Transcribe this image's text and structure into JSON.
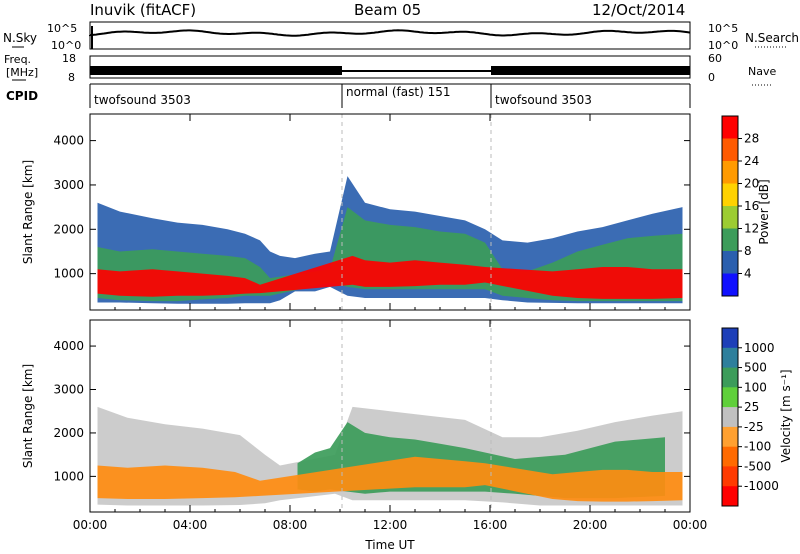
{
  "header": {
    "station": "Inuvik (fitACF)",
    "beam": "Beam 05",
    "date": "12/Oct/2014"
  },
  "strip": {
    "nsky_label": "N.Sky",
    "nsky_ticks": [
      "10^5",
      "10^0"
    ],
    "nsearch_label": "N.Search",
    "nsearch_ticks": [
      "10^5",
      "10^0"
    ],
    "freq_label_1": "Freq.",
    "freq_label_2": "[MHz]",
    "freq_ticks": [
      "18",
      "8"
    ],
    "nave_label": "Nave",
    "nave_ticks": [
      "60",
      "0"
    ],
    "cpid_label": "CPID",
    "modes": [
      {
        "name": "twofsound 3503",
        "start": 0,
        "end": 10
      },
      {
        "name": "normal (fast) 151",
        "start": 10,
        "end": 16
      },
      {
        "name": "twofsound 3503",
        "start": 16,
        "end": 24
      }
    ]
  },
  "chart_data": [
    {
      "type": "heatmap",
      "panel": "power",
      "xlabel": "",
      "ylabel": "Slant Range [km]",
      "xlim": [
        0,
        24
      ],
      "ylim": [
        180,
        4600
      ],
      "yticks": [
        "1000",
        "2000",
        "3000",
        "4000"
      ],
      "yvalues": [
        1000,
        2000,
        3000,
        4000
      ],
      "colorbar_label": "Power [dB]",
      "colorbar_ticks": [
        "28",
        "24",
        "20",
        "16",
        "12",
        "8",
        "4"
      ],
      "colorbar_colors": [
        "#ff0000",
        "#ff5a00",
        "#ff9a00",
        "#ffd200",
        "#9ccc32",
        "#3c9c5a",
        "#2a5fae",
        "#1010ff"
      ],
      "layers": [
        {
          "level": "low",
          "color": "#2a5fae",
          "x": [
            0.3,
            1.2,
            2.5,
            3.5,
            4.5,
            5.5,
            6.2,
            6.8,
            7.2,
            7.6,
            8.2,
            9.0,
            9.6,
            10.3,
            11.0,
            12.0,
            13.0,
            14.0,
            15.0,
            15.8,
            16.5,
            17.5,
            18.5,
            19.5,
            20.5,
            21.5,
            22.5,
            23.7
          ],
          "top": [
            2600,
            2400,
            2250,
            2150,
            2100,
            2000,
            1900,
            1750,
            1500,
            1400,
            1350,
            1450,
            1500,
            3200,
            2600,
            2450,
            2400,
            2300,
            2200,
            2000,
            1750,
            1700,
            1800,
            1950,
            2050,
            2200,
            2350,
            2500
          ],
          "bottom": [
            350,
            350,
            330,
            320,
            320,
            320,
            330,
            330,
            330,
            400,
            600,
            600,
            700,
            500,
            450,
            450,
            450,
            450,
            450,
            450,
            400,
            350,
            340,
            330,
            330,
            330,
            330,
            330
          ]
        },
        {
          "level": "mid",
          "color": "#3c9c5a",
          "x": [
            0.3,
            1.2,
            2.5,
            3.5,
            4.5,
            5.5,
            6.2,
            6.8,
            7.2,
            9.6,
            10.3,
            11.0,
            12.0,
            13.0,
            14.0,
            15.0,
            15.8,
            16.5,
            17.5,
            18.5,
            19.5,
            20.5,
            21.5,
            22.5,
            23.7
          ],
          "top": [
            1600,
            1500,
            1550,
            1500,
            1450,
            1400,
            1350,
            1150,
            900,
            1100,
            2500,
            2200,
            2100,
            2050,
            1950,
            1900,
            1700,
            1100,
            1050,
            1250,
            1500,
            1650,
            1800,
            1850,
            1900
          ],
          "bottom": [
            450,
            400,
            380,
            380,
            420,
            450,
            500,
            500,
            500,
            800,
            700,
            650,
            650,
            650,
            650,
            650,
            650,
            500,
            450,
            400,
            380,
            380,
            380,
            380,
            380
          ]
        },
        {
          "level": "high",
          "color": "#ff0000",
          "x": [
            0.3,
            1.2,
            2.5,
            3.5,
            4.5,
            5.5,
            6.2,
            6.8,
            10.5,
            11.0,
            12.0,
            13.0,
            14.0,
            15.0,
            15.8,
            18.5,
            19.5,
            20.5,
            21.5,
            22.5,
            23.7
          ],
          "top": [
            1100,
            1050,
            1100,
            1050,
            1000,
            950,
            900,
            750,
            1400,
            1300,
            1250,
            1300,
            1250,
            1200,
            1150,
            1050,
            1100,
            1150,
            1150,
            1100,
            1100
          ],
          "bottom": [
            550,
            500,
            480,
            500,
            500,
            520,
            550,
            560,
            750,
            700,
            700,
            720,
            750,
            750,
            800,
            500,
            450,
            430,
            430,
            430,
            450
          ]
        }
      ]
    },
    {
      "type": "heatmap",
      "panel": "velocity",
      "xlabel": "Time UT",
      "ylabel": "Slant Range [km]",
      "xlim": [
        0,
        24
      ],
      "ylim": [
        180,
        4600
      ],
      "xticks": [
        "00:00",
        "04:00",
        "08:00",
        "12:00",
        "16:00",
        "20:00",
        "00:00"
      ],
      "xvalues": [
        0,
        4,
        8,
        12,
        16,
        20,
        24
      ],
      "yticks": [
        "1000",
        "2000",
        "3000",
        "4000"
      ],
      "yvalues": [
        1000,
        2000,
        3000,
        4000
      ],
      "colorbar_label": "Velocity [m s⁻¹]",
      "colorbar_ticks": [
        "1000",
        "500",
        "100",
        "25",
        "-25",
        "-100",
        "-500",
        "-1000"
      ],
      "colorbar_colors": [
        "#1d3fb8",
        "#2e7f9c",
        "#3c9c5a",
        "#5fcf3a",
        "#c0c0c0",
        "#ffa030",
        "#ff6a00",
        "#ff3a00",
        "#ff0000"
      ],
      "layers": [
        {
          "level": "scatter",
          "color": "#c8c8c8",
          "x": [
            0.3,
            1.5,
            3.0,
            4.5,
            6.0,
            7.0,
            7.6,
            9.8,
            10.5,
            12.0,
            13.5,
            15.0,
            16.5,
            18.0,
            19.5,
            21.0,
            22.5,
            23.7
          ],
          "top": [
            2600,
            2350,
            2200,
            2100,
            1950,
            1500,
            1250,
            1500,
            2600,
            2500,
            2400,
            2300,
            1900,
            1900,
            2050,
            2250,
            2400,
            2500
          ],
          "bottom": [
            350,
            330,
            330,
            330,
            340,
            380,
            450,
            600,
            450,
            450,
            450,
            450,
            400,
            330,
            330,
            330,
            330,
            330
          ]
        },
        {
          "level": "green",
          "color": "#3c9c5a",
          "x": [
            8.3,
            9.0,
            9.6,
            10.3,
            11.0,
            12.0,
            13.0,
            14.0,
            15.0,
            15.8,
            17.0,
            19.0,
            21.0,
            23.0
          ],
          "top": [
            1300,
            1550,
            1650,
            2250,
            2000,
            1900,
            1850,
            1750,
            1650,
            1550,
            1400,
            1500,
            1800,
            1900
          ],
          "bottom": [
            700,
            650,
            700,
            650,
            600,
            650,
            650,
            650,
            650,
            650,
            600,
            500,
            500,
            550
          ]
        },
        {
          "level": "orange",
          "color": "#ff8c10",
          "x": [
            0.3,
            1.5,
            3.0,
            4.5,
            5.8,
            6.8,
            13.0,
            14.0,
            15.0,
            15.8,
            18.5,
            19.5,
            20.5,
            21.5,
            22.5,
            23.7
          ],
          "top": [
            1250,
            1200,
            1250,
            1200,
            1100,
            900,
            1450,
            1400,
            1350,
            1300,
            1050,
            1100,
            1150,
            1150,
            1100,
            1100
          ],
          "bottom": [
            500,
            480,
            480,
            500,
            520,
            550,
            750,
            750,
            750,
            800,
            480,
            430,
            420,
            420,
            430,
            450
          ]
        }
      ]
    }
  ]
}
